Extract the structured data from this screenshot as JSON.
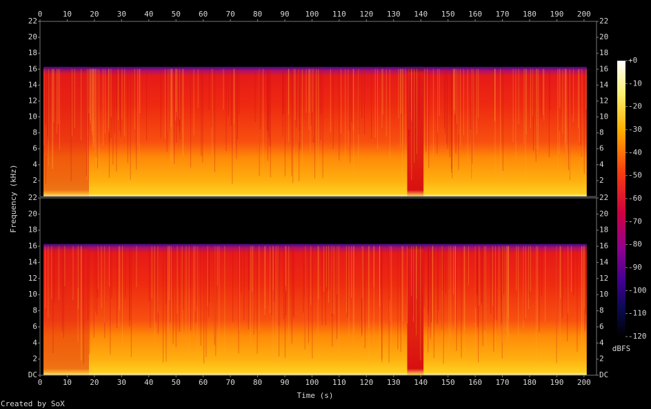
{
  "chart_data": {
    "type": "spectrogram",
    "x_label": "Time (s)",
    "y_label": "Frequency (kHz)",
    "footer": "Created by SoX",
    "xlim": [
      0,
      204.6
    ],
    "xticks": [
      0,
      10,
      20,
      30,
      40,
      50,
      60,
      70,
      80,
      90,
      100,
      110,
      120,
      130,
      140,
      150,
      160,
      170,
      180,
      190,
      200
    ],
    "channels": [
      {
        "ylim": [
          0,
          22
        ],
        "yticks": [
          2,
          4,
          6,
          8,
          10,
          12,
          14,
          16,
          18,
          20,
          22
        ]
      },
      {
        "ylim": [
          0,
          22
        ],
        "yticks": [
          {
            "value": 0,
            "label": "DC"
          },
          2,
          4,
          6,
          8,
          10,
          12,
          14,
          16,
          18,
          20,
          22
        ]
      }
    ],
    "colorbar": {
      "label": "dBFS",
      "lim": [
        -120,
        0
      ],
      "ticks": [
        {
          "value": 0,
          "label": "+0"
        },
        -10,
        -20,
        -30,
        -40,
        -50,
        -60,
        -70,
        -80,
        -90,
        -100,
        -110,
        -120
      ]
    }
  }
}
